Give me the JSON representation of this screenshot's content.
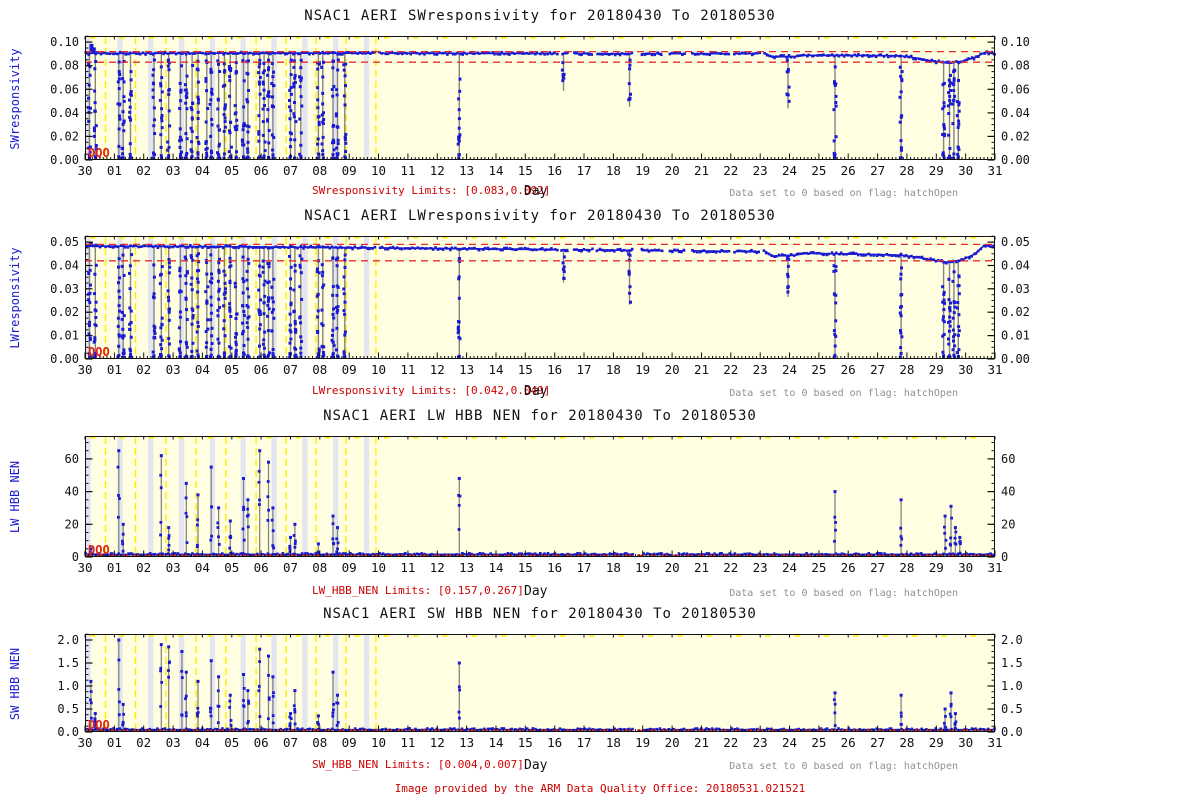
{
  "page": {
    "footer": "Image provided by the ARM Data Quality Office: 20180531.021521"
  },
  "colors": {
    "plot_bg": "#fffee0",
    "shade": "#e3e5f0",
    "yellow": "#ffee00",
    "blue": "#1a1ad1",
    "gray_line": "#848484",
    "limit_red": "#e23030",
    "axis_black": "#111111",
    "tick_text": "#111111"
  },
  "chart_data": [
    {
      "type": "scatter",
      "title": "NSAC1 AERI SWresponsivity for 20180430 To 20180530",
      "ylabel": "SWresponsivity",
      "xlabel": "Day",
      "limits_label": "SWresponsivity Limits: [0.083,0.092]",
      "flag_note": "Data set to 0 based on flag: hatchOpen",
      "watermark": "DQO",
      "x_tick_labels": [
        "30",
        "01",
        "02",
        "03",
        "04",
        "05",
        "06",
        "07",
        "08",
        "09",
        "10",
        "11",
        "12",
        "13",
        "14",
        "15",
        "16",
        "17",
        "18",
        "19",
        "20",
        "21",
        "22",
        "23",
        "24",
        "25",
        "26",
        "27",
        "28",
        "29",
        "30",
        "31"
      ],
      "ymax": 0.1052,
      "yticks": [
        0,
        0.02,
        0.04,
        0.06,
        0.08,
        0.1
      ],
      "ytick_labels": [
        "0.00",
        "0.02",
        "0.04",
        "0.06",
        "0.08",
        "0.10"
      ],
      "y_minor_step": 0.005,
      "limits": [
        0.083,
        0.092
      ],
      "yellow_line_days": [
        0.7,
        1.72,
        2.76,
        3.78,
        4.8,
        5.83,
        6.85,
        7.87,
        8.89,
        9.91
      ],
      "shade_band_days": [
        0.02,
        1.1,
        2.15,
        3.2,
        4.25,
        5.3,
        6.35,
        7.4,
        8.45,
        9.5
      ],
      "baseline": [
        [
          0,
          0.0905
        ],
        [
          8,
          0.0907
        ],
        [
          13,
          0.0905
        ],
        [
          18,
          0.0902
        ],
        [
          23.2,
          0.0902
        ],
        [
          23.4,
          0.0876
        ],
        [
          24.2,
          0.0878
        ],
        [
          24.5,
          0.0888
        ],
        [
          26.5,
          0.0887
        ],
        [
          27.8,
          0.0883
        ],
        [
          28.4,
          0.0862
        ],
        [
          28.9,
          0.0838
        ],
        [
          29.4,
          0.0822
        ],
        [
          29.9,
          0.0838
        ],
        [
          30.3,
          0.0868
        ],
        [
          30.65,
          0.0912
        ],
        [
          31,
          0.0902
        ]
      ],
      "baseline_gaps": [
        [
          9.9,
          10.05
        ],
        [
          16.1,
          16.25
        ],
        [
          16.5,
          16.62
        ],
        [
          17.3,
          17.42
        ],
        [
          18.68,
          18.95
        ],
        [
          19.68,
          19.88
        ],
        [
          20.5,
          20.62
        ],
        [
          22.0,
          22.12
        ],
        [
          23.0,
          23.12
        ]
      ],
      "up_spikes": [
        [
          0.22,
          0.0985
        ],
        [
          0.3,
          0.0955
        ]
      ],
      "drop_events": [
        [
          0.15,
          1
        ],
        [
          0.35,
          1
        ],
        [
          1.15,
          1
        ],
        [
          1.3,
          1
        ],
        [
          1.55,
          1
        ],
        [
          2.35,
          1
        ],
        [
          2.6,
          1
        ],
        [
          2.85,
          1
        ],
        [
          3.25,
          1
        ],
        [
          3.45,
          1
        ],
        [
          3.65,
          1
        ],
        [
          3.85,
          1
        ],
        [
          4.15,
          1
        ],
        [
          4.3,
          1
        ],
        [
          4.55,
          1
        ],
        [
          4.75,
          1
        ],
        [
          4.95,
          1
        ],
        [
          5.15,
          1
        ],
        [
          5.4,
          1
        ],
        [
          5.55,
          1
        ],
        [
          5.95,
          1
        ],
        [
          6.1,
          1
        ],
        [
          6.25,
          1
        ],
        [
          6.4,
          1
        ],
        [
          7.0,
          1
        ],
        [
          7.15,
          1
        ],
        [
          7.35,
          1
        ],
        [
          7.95,
          1
        ],
        [
          8.1,
          1
        ],
        [
          8.45,
          1
        ],
        [
          8.6,
          1
        ],
        [
          8.85,
          1
        ],
        [
          12.75,
          1
        ],
        [
          16.3,
          0.35
        ],
        [
          18.55,
          0.5
        ],
        [
          23.95,
          0.5
        ],
        [
          25.55,
          1
        ],
        [
          27.8,
          1
        ],
        [
          29.25,
          1
        ],
        [
          29.45,
          1
        ],
        [
          29.6,
          1
        ],
        [
          29.75,
          1
        ]
      ],
      "spikes": []
    },
    {
      "type": "scatter",
      "title": "NSAC1 AERI LWresponsivity for 20180430 To 20180530",
      "ylabel": "LWresponsivity",
      "xlabel": "Day",
      "limits_label": "LWresponsivity Limits: [0.042,0.049]",
      "flag_note": "Data set to 0 based on flag: hatchOpen",
      "watermark": "DQO",
      "x_tick_labels": [
        "30",
        "01",
        "02",
        "03",
        "04",
        "05",
        "06",
        "07",
        "08",
        "09",
        "10",
        "11",
        "12",
        "13",
        "14",
        "15",
        "16",
        "17",
        "18",
        "19",
        "20",
        "21",
        "22",
        "23",
        "24",
        "25",
        "26",
        "27",
        "28",
        "29",
        "30",
        "31"
      ],
      "ymax": 0.0526,
      "yticks": [
        0,
        0.01,
        0.02,
        0.03,
        0.04,
        0.05
      ],
      "ytick_labels": [
        "0.00",
        "0.01",
        "0.02",
        "0.03",
        "0.04",
        "0.05"
      ],
      "y_minor_step": 0.0025,
      "limits": [
        0.042,
        0.049
      ],
      "yellow_line_days": [
        0.7,
        1.72,
        2.76,
        3.78,
        4.8,
        5.83,
        6.85,
        7.87,
        8.89,
        9.91
      ],
      "shade_band_days": [
        0.02,
        1.1,
        2.15,
        3.2,
        4.25,
        5.3,
        6.35,
        7.4,
        8.45,
        9.5
      ],
      "baseline": [
        [
          0,
          0.0483
        ],
        [
          5,
          0.048
        ],
        [
          10,
          0.0475
        ],
        [
          15,
          0.0469
        ],
        [
          20,
          0.0463
        ],
        [
          23.2,
          0.0459
        ],
        [
          23.4,
          0.044
        ],
        [
          24.2,
          0.0444
        ],
        [
          24.5,
          0.0452
        ],
        [
          26.5,
          0.0448
        ],
        [
          27.8,
          0.0444
        ],
        [
          28.4,
          0.0434
        ],
        [
          28.9,
          0.0422
        ],
        [
          29.4,
          0.0413
        ],
        [
          29.9,
          0.0425
        ],
        [
          30.3,
          0.0448
        ],
        [
          30.65,
          0.0487
        ],
        [
          31,
          0.0478
        ]
      ],
      "baseline_gaps": [
        [
          9.9,
          10.05
        ],
        [
          16.1,
          16.25
        ],
        [
          16.5,
          16.62
        ],
        [
          17.3,
          17.42
        ],
        [
          18.68,
          18.95
        ],
        [
          19.68,
          19.88
        ],
        [
          20.5,
          20.62
        ],
        [
          22.0,
          22.12
        ],
        [
          23.0,
          23.12
        ]
      ],
      "up_spikes": [
        [
          0.2,
          0.0502
        ],
        [
          0.3,
          0.049
        ]
      ],
      "drop_events": [
        [
          0.15,
          1
        ],
        [
          0.35,
          1
        ],
        [
          1.15,
          1
        ],
        [
          1.3,
          1
        ],
        [
          1.55,
          1
        ],
        [
          2.35,
          1
        ],
        [
          2.6,
          1
        ],
        [
          2.85,
          1
        ],
        [
          3.25,
          1
        ],
        [
          3.45,
          1
        ],
        [
          3.65,
          1
        ],
        [
          3.85,
          1
        ],
        [
          4.15,
          1
        ],
        [
          4.3,
          1
        ],
        [
          4.55,
          1
        ],
        [
          4.75,
          1
        ],
        [
          4.95,
          1
        ],
        [
          5.15,
          1
        ],
        [
          5.4,
          1
        ],
        [
          5.55,
          1
        ],
        [
          5.95,
          1
        ],
        [
          6.1,
          1
        ],
        [
          6.25,
          1
        ],
        [
          6.4,
          1
        ],
        [
          7.0,
          1
        ],
        [
          7.15,
          1
        ],
        [
          7.35,
          1
        ],
        [
          7.95,
          1
        ],
        [
          8.1,
          1
        ],
        [
          8.45,
          1
        ],
        [
          8.6,
          1
        ],
        [
          8.85,
          1
        ],
        [
          12.75,
          1
        ],
        [
          16.3,
          0.3
        ],
        [
          18.55,
          0.5
        ],
        [
          23.95,
          0.4
        ],
        [
          25.55,
          1
        ],
        [
          27.8,
          1
        ],
        [
          29.25,
          1
        ],
        [
          29.45,
          1
        ],
        [
          29.6,
          1
        ],
        [
          29.75,
          1
        ]
      ],
      "spikes": []
    },
    {
      "type": "scatter",
      "title": "NSAC1 AERI LW HBB NEN for 20180430 To 20180530",
      "ylabel": "LW HBB NEN",
      "xlabel": "Day",
      "limits_label": "LW_HBB_NEN Limits: [0.157,0.267]",
      "flag_note": "Data set to 0 based on flag: hatchOpen",
      "watermark": "DQO",
      "x_tick_labels": [
        "30",
        "01",
        "02",
        "03",
        "04",
        "05",
        "06",
        "07",
        "08",
        "09",
        "10",
        "11",
        "12",
        "13",
        "14",
        "15",
        "16",
        "17",
        "18",
        "19",
        "20",
        "21",
        "22",
        "23",
        "24",
        "25",
        "26",
        "27",
        "28",
        "29",
        "30",
        "31"
      ],
      "ymax": 74,
      "yticks": [
        0,
        20,
        40,
        60
      ],
      "ytick_labels": [
        "0",
        "20",
        "40",
        "60"
      ],
      "y_minor_step": 5,
      "limits": [
        0.157,
        0.267
      ],
      "yellow_line_days": [
        0.7,
        1.72,
        2.76,
        3.78,
        4.8,
        5.83,
        6.85,
        7.87,
        8.89,
        9.91
      ],
      "shade_band_days": [
        0.02,
        1.1,
        2.15,
        3.2,
        4.25,
        5.3,
        6.35,
        7.4,
        8.45,
        9.5
      ],
      "baseline": [
        [
          0,
          1.5
        ],
        [
          31,
          1.5
        ]
      ],
      "baseline_gaps": [
        [
          18.7,
          19.0
        ],
        [
          20.0,
          20.2
        ]
      ],
      "up_spikes": [],
      "drop_events": [],
      "spikes": [
        [
          0.2,
          5
        ],
        [
          1.15,
          65
        ],
        [
          1.3,
          20
        ],
        [
          2.6,
          62
        ],
        [
          2.85,
          18
        ],
        [
          3.45,
          45
        ],
        [
          3.85,
          38
        ],
        [
          4.3,
          55
        ],
        [
          4.55,
          30
        ],
        [
          4.95,
          22
        ],
        [
          5.4,
          48
        ],
        [
          5.55,
          35
        ],
        [
          5.95,
          65
        ],
        [
          6.25,
          58
        ],
        [
          6.4,
          30
        ],
        [
          7.0,
          12
        ],
        [
          7.15,
          20
        ],
        [
          7.95,
          8
        ],
        [
          8.45,
          25
        ],
        [
          8.6,
          18
        ],
        [
          12.75,
          48
        ],
        [
          25.55,
          40
        ],
        [
          27.8,
          35
        ],
        [
          29.3,
          25
        ],
        [
          29.5,
          31
        ],
        [
          29.65,
          18
        ],
        [
          29.8,
          12
        ]
      ]
    },
    {
      "type": "scatter",
      "title": "NSAC1 AERI SW HBB NEN for 20180430 To 20180530",
      "ylabel": "SW HBB NEN",
      "xlabel": "Day",
      "limits_label": "SW_HBB_NEN Limits: [0.004,0.007]",
      "flag_note": "Data set to 0 based on flag: hatchOpen",
      "watermark": "DQO",
      "x_tick_labels": [
        "30",
        "01",
        "02",
        "03",
        "04",
        "05",
        "06",
        "07",
        "08",
        "09",
        "10",
        "11",
        "12",
        "13",
        "14",
        "15",
        "16",
        "17",
        "18",
        "19",
        "20",
        "21",
        "22",
        "23",
        "24",
        "25",
        "26",
        "27",
        "28",
        "29",
        "30",
        "31"
      ],
      "ymax": 2.13,
      "yticks": [
        0,
        0.5,
        1.0,
        1.5,
        2.0
      ],
      "ytick_labels": [
        "0.0",
        "0.5",
        "1.0",
        "1.5",
        "2.0"
      ],
      "y_minor_step": 0.125,
      "limits": [
        0.004,
        0.007
      ],
      "yellow_line_days": [
        0.7,
        1.72,
        2.76,
        3.78,
        4.8,
        5.83,
        6.85,
        7.87,
        8.89,
        9.91
      ],
      "shade_band_days": [
        0.02,
        1.1,
        2.15,
        3.2,
        4.25,
        5.3,
        6.35,
        7.4,
        8.45,
        9.5
      ],
      "baseline": [
        [
          0,
          0.05
        ],
        [
          31,
          0.05
        ]
      ],
      "baseline_gaps": [
        [
          18.7,
          19.0
        ]
      ],
      "up_spikes": [],
      "drop_events": [],
      "spikes": [
        [
          0.2,
          1.1
        ],
        [
          0.35,
          0.4
        ],
        [
          1.15,
          2.0
        ],
        [
          1.3,
          0.6
        ],
        [
          2.6,
          1.9
        ],
        [
          2.85,
          1.85
        ],
        [
          3.3,
          1.75
        ],
        [
          3.45,
          1.3
        ],
        [
          3.85,
          1.1
        ],
        [
          4.3,
          1.55
        ],
        [
          4.55,
          1.2
        ],
        [
          4.95,
          0.8
        ],
        [
          5.4,
          1.25
        ],
        [
          5.55,
          0.9
        ],
        [
          5.95,
          1.8
        ],
        [
          6.25,
          1.65
        ],
        [
          6.4,
          1.2
        ],
        [
          7.0,
          0.4
        ],
        [
          7.15,
          0.9
        ],
        [
          7.95,
          0.35
        ],
        [
          8.45,
          1.3
        ],
        [
          8.6,
          0.8
        ],
        [
          12.75,
          1.5
        ],
        [
          25.55,
          0.85
        ],
        [
          27.8,
          0.8
        ],
        [
          29.3,
          0.5
        ],
        [
          29.5,
          0.85
        ],
        [
          29.65,
          0.4
        ]
      ]
    }
  ]
}
